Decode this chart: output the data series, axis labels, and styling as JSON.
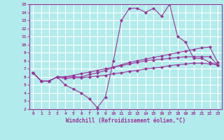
{
  "xlabel": "Windchill (Refroidissement éolien,°C)",
  "ylabel": "",
  "xlim": [
    -0.5,
    23.5
  ],
  "ylim": [
    2,
    15
  ],
  "xticks": [
    0,
    1,
    2,
    3,
    4,
    5,
    6,
    7,
    8,
    9,
    10,
    11,
    12,
    13,
    14,
    15,
    16,
    17,
    18,
    19,
    20,
    21,
    22,
    23
  ],
  "yticks": [
    2,
    3,
    4,
    5,
    6,
    7,
    8,
    9,
    10,
    11,
    12,
    13,
    14,
    15
  ],
  "bg_color": "#b2ebeb",
  "grid_color": "#ffffff",
  "line_color": "#993399",
  "line_width": 0.8,
  "marker": "D",
  "marker_size": 2.0,
  "series": [
    [
      6.5,
      5.5,
      5.5,
      6.0,
      5.0,
      4.5,
      4.0,
      3.3,
      2.2,
      3.5,
      8.0,
      13.0,
      14.5,
      14.5,
      14.0,
      14.5,
      13.5,
      15.0,
      11.0,
      10.3,
      8.3,
      8.3,
      7.8,
      7.5
    ],
    [
      6.5,
      5.5,
      5.5,
      6.0,
      6.0,
      6.0,
      6.0,
      6.3,
      6.5,
      6.8,
      7.2,
      7.5,
      7.8,
      8.0,
      8.2,
      8.4,
      8.6,
      8.8,
      9.0,
      9.2,
      9.4,
      9.6,
      9.7,
      7.8
    ],
    [
      6.5,
      5.5,
      5.5,
      6.0,
      6.0,
      6.2,
      6.4,
      6.6,
      6.8,
      7.0,
      7.2,
      7.4,
      7.6,
      7.8,
      8.0,
      8.1,
      8.2,
      8.3,
      8.4,
      8.5,
      8.5,
      8.5,
      8.5,
      7.5
    ],
    [
      6.5,
      5.5,
      5.5,
      6.0,
      5.8,
      5.9,
      5.9,
      6.0,
      6.1,
      6.2,
      6.4,
      6.5,
      6.7,
      6.8,
      7.0,
      7.1,
      7.2,
      7.4,
      7.5,
      7.6,
      7.7,
      7.7,
      7.6,
      7.5
    ]
  ]
}
